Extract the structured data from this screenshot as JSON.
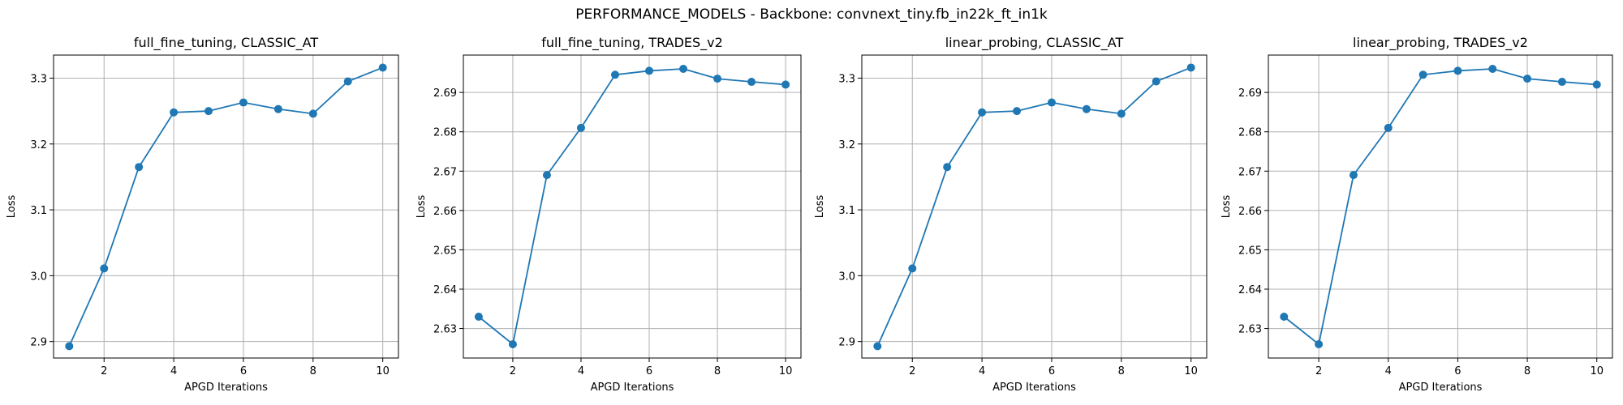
{
  "figure": {
    "suptitle": "PERFORMANCE_MODELS - Backbone: convnext_tiny.fb_in22k_ft_in1k"
  },
  "colors": {
    "series": "#1f77b4",
    "grid": "#b0b0b0",
    "axes": "#000000"
  },
  "chart_data": [
    {
      "type": "line",
      "title": "full_fine_tuning, CLASSIC_AT",
      "xlabel": "APGD Iterations",
      "ylabel": "Loss",
      "grid": true,
      "xlim": [
        0.55,
        10.45
      ],
      "ylim": [
        2.875,
        3.335
      ],
      "xticks": [
        2,
        4,
        6,
        8,
        10
      ],
      "yticks": [
        "2.9",
        "3.0",
        "3.1",
        "3.2",
        "3.3"
      ],
      "ytick_values": [
        2.9,
        3.0,
        3.1,
        3.2,
        3.3
      ],
      "x": [
        1,
        2,
        3,
        4,
        5,
        6,
        7,
        8,
        9,
        10
      ],
      "series": [
        {
          "values": [
            2.893,
            3.011,
            3.165,
            3.248,
            3.25,
            3.263,
            3.253,
            3.246,
            3.295,
            3.316
          ]
        }
      ]
    },
    {
      "type": "line",
      "title": "full_fine_tuning, TRADES_v2",
      "xlabel": "APGD Iterations",
      "ylabel": "Loss",
      "grid": true,
      "xlim": [
        0.55,
        10.45
      ],
      "ylim": [
        2.6225,
        2.6995
      ],
      "xticks": [
        2,
        4,
        6,
        8,
        10
      ],
      "yticks": [
        "2.63",
        "2.64",
        "2.65",
        "2.66",
        "2.67",
        "2.68",
        "2.69"
      ],
      "ytick_values": [
        2.63,
        2.64,
        2.65,
        2.66,
        2.67,
        2.68,
        2.69
      ],
      "x": [
        1,
        2,
        3,
        4,
        5,
        6,
        7,
        8,
        9,
        10
      ],
      "series": [
        {
          "values": [
            2.633,
            2.626,
            2.669,
            2.681,
            2.6945,
            2.6955,
            2.696,
            2.6935,
            2.6927,
            2.692
          ]
        }
      ]
    },
    {
      "type": "line",
      "title": "linear_probing, CLASSIC_AT",
      "xlabel": "APGD Iterations",
      "ylabel": "Loss",
      "grid": true,
      "xlim": [
        0.55,
        10.45
      ],
      "ylim": [
        2.875,
        3.335
      ],
      "xticks": [
        2,
        4,
        6,
        8,
        10
      ],
      "yticks": [
        "2.9",
        "3.0",
        "3.1",
        "3.2",
        "3.3"
      ],
      "ytick_values": [
        2.9,
        3.0,
        3.1,
        3.2,
        3.3
      ],
      "x": [
        1,
        2,
        3,
        4,
        5,
        6,
        7,
        8,
        9,
        10
      ],
      "series": [
        {
          "values": [
            2.893,
            3.011,
            3.165,
            3.248,
            3.25,
            3.263,
            3.253,
            3.246,
            3.295,
            3.316
          ]
        }
      ]
    },
    {
      "type": "line",
      "title": "linear_probing, TRADES_v2",
      "xlabel": "APGD Iterations",
      "ylabel": "Loss",
      "grid": true,
      "xlim": [
        0.55,
        10.45
      ],
      "ylim": [
        2.6225,
        2.6995
      ],
      "xticks": [
        2,
        4,
        6,
        8,
        10
      ],
      "yticks": [
        "2.63",
        "2.64",
        "2.65",
        "2.66",
        "2.67",
        "2.68",
        "2.69"
      ],
      "ytick_values": [
        2.63,
        2.64,
        2.65,
        2.66,
        2.67,
        2.68,
        2.69
      ],
      "x": [
        1,
        2,
        3,
        4,
        5,
        6,
        7,
        8,
        9,
        10
      ],
      "series": [
        {
          "values": [
            2.633,
            2.626,
            2.669,
            2.681,
            2.6945,
            2.6955,
            2.696,
            2.6935,
            2.6927,
            2.692
          ]
        }
      ]
    }
  ]
}
